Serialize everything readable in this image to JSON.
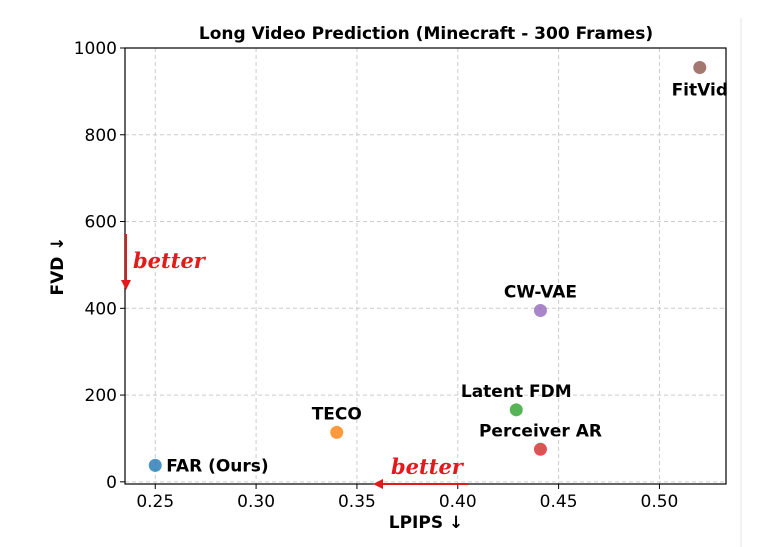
{
  "chart_data": {
    "type": "scatter",
    "title": "Long Video Prediction (Minecraft - 300 Frames)",
    "xlabel": "LPIPS ↓",
    "ylabel": "FVD ↓",
    "xlim": [
      0.235,
      0.533
    ],
    "ylim": [
      -5,
      1000
    ],
    "xticks": [
      0.25,
      0.3,
      0.35,
      0.4,
      0.45,
      0.5
    ],
    "xtick_labels": [
      "0.25",
      "0.30",
      "0.35",
      "0.40",
      "0.45",
      "0.50"
    ],
    "yticks": [
      0,
      200,
      400,
      600,
      800,
      1000
    ],
    "ytick_labels": [
      "0",
      "200",
      "400",
      "600",
      "800",
      "1000"
    ],
    "grid": true,
    "points": [
      {
        "label": "FAR (Ours)",
        "x": 0.25,
        "y": 38,
        "color": "#1f77b4",
        "label_pos": "right"
      },
      {
        "label": "TECO",
        "x": 0.34,
        "y": 114,
        "color": "#ff7f0e",
        "label_pos": "above"
      },
      {
        "label": "Latent FDM",
        "x": 0.429,
        "y": 166,
        "color": "#2ca02c",
        "label_pos": "above"
      },
      {
        "label": "Perceiver AR",
        "x": 0.441,
        "y": 75,
        "color": "#d62728",
        "label_pos": "above"
      },
      {
        "label": "CW-VAE",
        "x": 0.441,
        "y": 395,
        "color": "#9467bd",
        "label_pos": "above"
      },
      {
        "label": "FitVid",
        "x": 0.52,
        "y": 955,
        "color": "#8c564b",
        "label_pos": "below"
      }
    ],
    "annotations": [
      {
        "text": "better",
        "color": "#e31a1c",
        "direction": "down",
        "axis": "y"
      },
      {
        "text": "better",
        "color": "#e31a1c",
        "direction": "left",
        "axis": "x"
      }
    ]
  }
}
